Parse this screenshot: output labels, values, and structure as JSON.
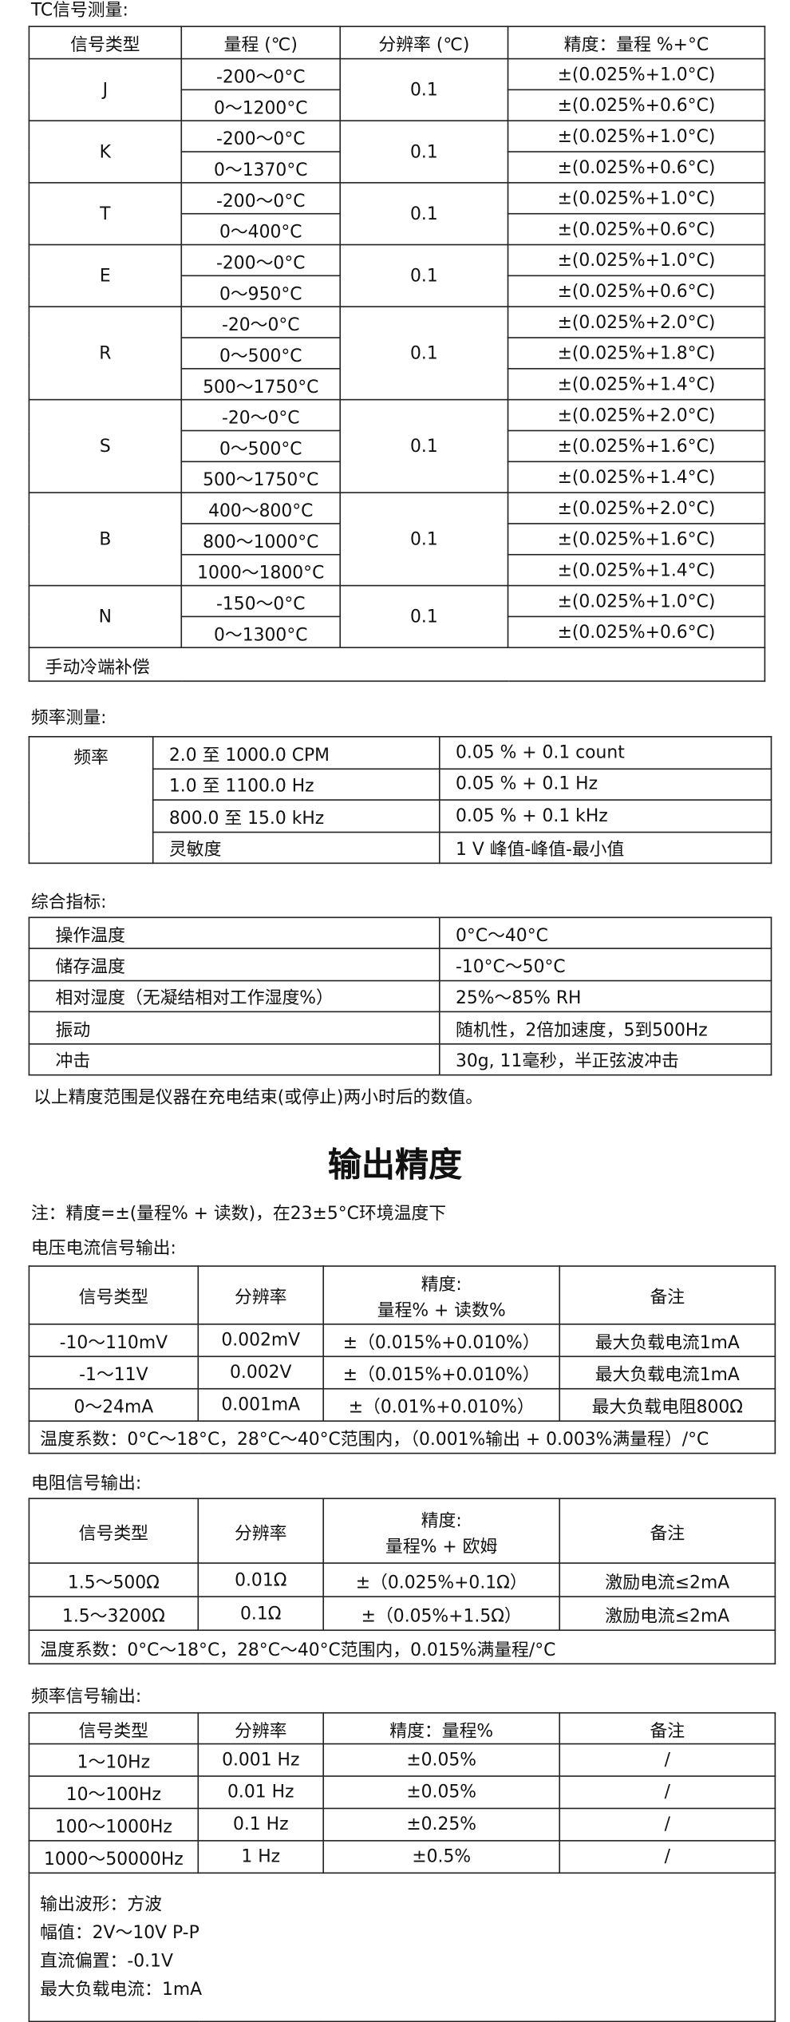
{
  "tc": {
    "heading": "TC信号测量:",
    "header": [
      "信号类型",
      "量程 (℃)",
      "分辨率 (℃)",
      "精度：量程 %+°C"
    ],
    "groups": [
      {
        "type": "J",
        "resolution": "0.1",
        "ranges": [
          "-200～0°C",
          "0～1200°C"
        ],
        "accuracy": [
          "±(0.025%+1.0°C)",
          "±(0.025%+0.6°C)"
        ]
      },
      {
        "type": "K",
        "resolution": "0.1",
        "ranges": [
          "-200～0°C",
          "0～1370°C"
        ],
        "accuracy": [
          "±(0.025%+1.0°C)",
          "±(0.025%+0.6°C)"
        ]
      },
      {
        "type": "T",
        "resolution": "0.1",
        "ranges": [
          "-200～0°C",
          "0～400°C"
        ],
        "accuracy": [
          "±(0.025%+1.0°C)",
          "±(0.025%+0.6°C)"
        ]
      },
      {
        "type": "E",
        "resolution": "0.1",
        "ranges": [
          "-200～0°C",
          "0～950°C"
        ],
        "accuracy": [
          "±(0.025%+1.0°C)",
          "±(0.025%+0.6°C)"
        ]
      },
      {
        "type": "R",
        "resolution": "0.1",
        "ranges": [
          "-20～0°C",
          "0～500°C",
          "500～1750°C"
        ],
        "accuracy": [
          "±(0.025%+2.0°C)",
          "±(0.025%+1.8°C)",
          "±(0.025%+1.4°C)"
        ]
      },
      {
        "type": "S",
        "resolution": "0.1",
        "ranges": [
          "-20～0°C",
          "0～500°C",
          "500～1750°C"
        ],
        "accuracy": [
          "±(0.025%+2.0°C)",
          "±(0.025%+1.6°C)",
          "±(0.025%+1.4°C)"
        ]
      },
      {
        "type": "B",
        "resolution": "0.1",
        "ranges": [
          "400～800°C",
          "800～1000°C",
          "1000～1800°C"
        ],
        "accuracy": [
          "±(0.025%+2.0°C)",
          "±(0.025%+1.6°C)",
          "±(0.025%+1.4°C)"
        ]
      },
      {
        "type": "N",
        "resolution": "0.1",
        "ranges": [
          "-150～0°C",
          "0～1300°C"
        ],
        "accuracy": [
          "±(0.025%+1.0°C)",
          "±(0.025%+0.6°C)"
        ]
      }
    ],
    "footer": "手动冷端补偿"
  },
  "freq_measure": {
    "heading": "频率测量:",
    "label": "频率",
    "rows": [
      [
        "2.0 至 1000.0 CPM",
        "0.05 % + 0.1 count"
      ],
      [
        "1.0 至 1100.0 Hz",
        "0.05 % + 0.1 Hz"
      ],
      [
        "800.0 至 15.0 kHz",
        "0.05 % + 0.1 kHz"
      ],
      [
        "灵敏度",
        "1 V 峰值-峰值-最小值"
      ]
    ]
  },
  "general": {
    "heading": "综合指标:",
    "rows": [
      [
        "操作温度",
        "0°C～40°C"
      ],
      [
        "储存温度",
        "-10°C～50°C"
      ],
      [
        "相对湿度（无凝结相对工作湿度%）",
        "25%～85% RH"
      ],
      [
        "振动",
        "随机性，2倍加速度，5到500Hz"
      ],
      [
        "冲击",
        "30g, 11毫秒，半正弦波冲击"
      ]
    ],
    "note": "以上精度范围是仪器在充电结束(或停止)两小时后的数值。"
  },
  "output": {
    "title": "输出精度",
    "note": "注：精度=±(量程% + 读数)，在23±5°C环境温度下"
  },
  "voltage_current": {
    "heading": "电压电流信号输出:",
    "header": [
      "信号类型",
      "分辨率",
      [
        "精度:",
        "量程% + 读数%"
      ],
      "备注"
    ],
    "rows": [
      [
        "-10～110mV",
        "0.002mV",
        "±（0.015%+0.010%）",
        "最大负载电流1mA"
      ],
      [
        "-1～11V",
        "0.002V",
        "±（0.015%+0.010%）",
        "最大负载电流1mA"
      ],
      [
        "0～24mA",
        "0.001mA",
        "±（0.01%+0.010%）",
        "最大负载电阻800Ω"
      ]
    ],
    "footer": "温度系数：0°C～18°C，28°C～40°C范围内，（0.001%输出 + 0.003%满量程）/°C"
  },
  "resistance": {
    "heading": "电阻信号输出:",
    "header": [
      "信号类型",
      "分辨率",
      [
        "精度:",
        "量程%  +  欧姆"
      ],
      "备注"
    ],
    "rows": [
      [
        "1.5～500Ω",
        "0.01Ω",
        "±（0.025%+0.1Ω）",
        "激励电流≤2mA"
      ],
      [
        "1.5～3200Ω",
        "0.1Ω",
        "±（0.05%+1.5Ω）",
        "激励电流≤2mA"
      ]
    ],
    "footer": "温度系数：0°C～18°C，28°C～40°C范围内，0.015%满量程/°C"
  },
  "freq_output": {
    "heading": "频率信号输出:",
    "header": [
      "信号类型",
      "分辨率",
      "精度：量程%",
      "备注"
    ],
    "rows": [
      [
        "1～10Hz",
        "0.001 Hz",
        "±0.05%",
        "/"
      ],
      [
        "10～100Hz",
        "0.01 Hz",
        "±0.05%",
        "/"
      ],
      [
        "100～1000Hz",
        "0.1 Hz",
        "±0.25%",
        "/"
      ],
      [
        "1000～50000Hz",
        "1 Hz",
        "±0.5%",
        "/"
      ]
    ],
    "notes": [
      "输出波形：方波",
      "幅值：2V～10V  P-P",
      "直流偏置：-0.1V",
      "最大负载电流：1mA"
    ]
  }
}
